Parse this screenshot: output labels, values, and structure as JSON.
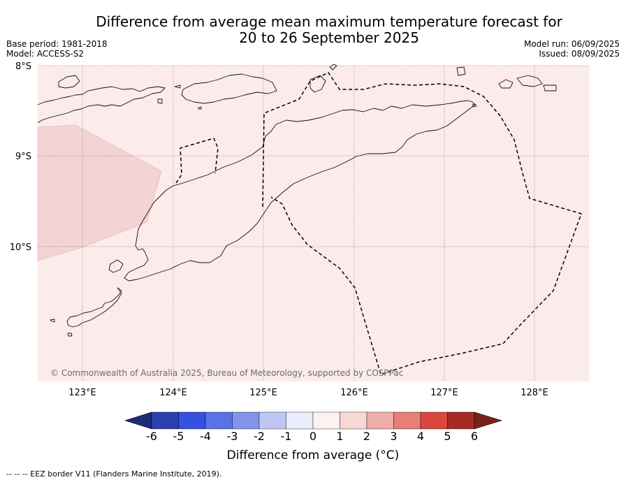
{
  "title": {
    "line1": "Difference from average mean maximum temperature forecast for",
    "line2": "20 to 26 September 2025"
  },
  "meta_left": {
    "base_period": "Base period: 1981-2018",
    "model": "Model: ACCESS-S2"
  },
  "meta_right": {
    "model_run": "Model run: 06/09/2025",
    "issued": "Issued: 08/09/2025"
  },
  "map": {
    "lat_labels": [
      "8°S",
      "9°S",
      "10°S"
    ],
    "lon_labels": [
      "123°E",
      "124°E",
      "125°E",
      "126°E",
      "127°E",
      "128°E"
    ],
    "background_color": "#fbebea",
    "anomaly_patch_color": "#f4d4d2",
    "copyright": "© Commonwealth of Australia 2025, Bureau of Meteorology, supported by COSPPac"
  },
  "colorbar": {
    "ticks": [
      "-6",
      "-5",
      "-4",
      "-3",
      "-2",
      "-1",
      "0",
      "1",
      "2",
      "3",
      "4",
      "5",
      "6"
    ],
    "colors": [
      "#1b2c77",
      "#2a3fb0",
      "#3451e0",
      "#5a72e6",
      "#8195eb",
      "#bec7f4",
      "#ebedfd",
      "#fdf1f1",
      "#f7d8d5",
      "#eeaea9",
      "#e57f77",
      "#d9473d",
      "#a72b23",
      "#79221a"
    ],
    "label": "Difference from average (°C)"
  },
  "footnote": "--  --  -- EEZ border V11 (Flanders Marine Institute, 2019)."
}
